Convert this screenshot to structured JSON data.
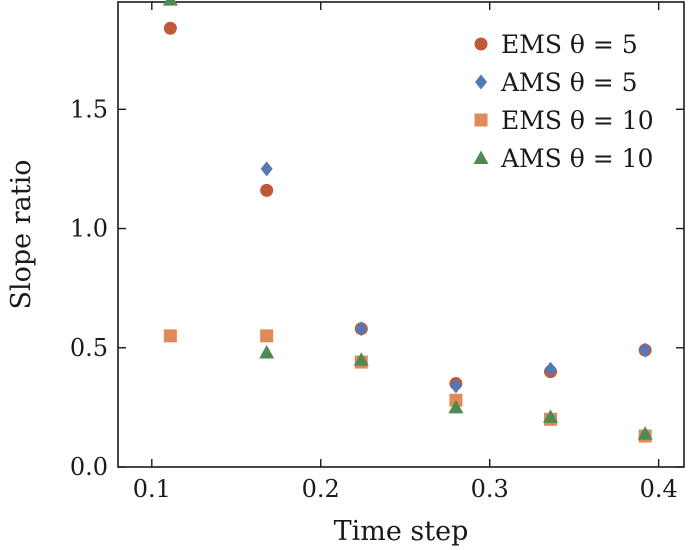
{
  "chart_data": {
    "type": "scatter",
    "title": "",
    "xlabel": "Time step",
    "ylabel": "Slope ratio",
    "xlim": [
      0.08,
      0.415
    ],
    "ylim": [
      0.0,
      1.95
    ],
    "xticks": [
      {
        "value": 0.1,
        "label": "0.1"
      },
      {
        "value": 0.2,
        "label": "0.2"
      },
      {
        "value": 0.3,
        "label": "0.3"
      },
      {
        "value": 0.4,
        "label": "0.4"
      }
    ],
    "yticks": [
      {
        "value": 0.0,
        "label": "0.0"
      },
      {
        "value": 0.5,
        "label": "0.5"
      },
      {
        "value": 1.0,
        "label": "1.0"
      },
      {
        "value": 1.5,
        "label": "1.5"
      }
    ],
    "grid": false,
    "legend_position": "top-right",
    "series": [
      {
        "name": "EMS θ = 5",
        "marker": "circle",
        "color": "#c0583a",
        "x": [
          0.111,
          0.168,
          0.224,
          0.28,
          0.336,
          0.392
        ],
        "y": [
          1.84,
          1.16,
          0.58,
          0.35,
          0.4,
          0.49
        ]
      },
      {
        "name": "AMS θ = 5",
        "marker": "diamond",
        "color": "#5577b3",
        "x": [
          0.168,
          0.224,
          0.28,
          0.336,
          0.392
        ],
        "y": [
          1.25,
          0.58,
          0.34,
          0.41,
          0.49
        ]
      },
      {
        "name": "EMS θ = 10",
        "marker": "square",
        "color": "#e08a5c",
        "x": [
          0.111,
          0.168,
          0.224,
          0.28,
          0.336,
          0.392
        ],
        "y": [
          0.55,
          0.55,
          0.44,
          0.28,
          0.2,
          0.13
        ]
      },
      {
        "name": "AMS θ = 10",
        "marker": "triangle",
        "color": "#4e8a52",
        "x": [
          0.111,
          0.168,
          0.224,
          0.28,
          0.336,
          0.392
        ],
        "y": [
          1.96,
          0.48,
          0.45,
          0.25,
          0.21,
          0.14
        ]
      }
    ]
  }
}
